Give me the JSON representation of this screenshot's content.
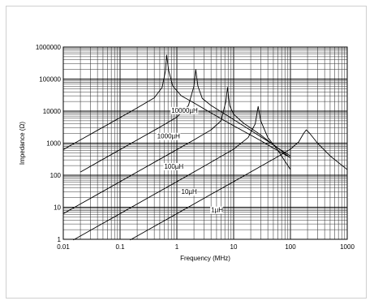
{
  "chart_data": {
    "type": "line",
    "xlabel": "Frequency (MHz)",
    "ylabel": "Impedance (Ω)",
    "xscale": "log",
    "yscale": "log",
    "xlim": [
      0.01,
      1000
    ],
    "ylim": [
      1,
      1000000
    ],
    "grid": true,
    "x_ticks": [
      "0.01",
      "0.1",
      "1",
      "10",
      "100",
      "1000"
    ],
    "y_ticks": [
      "1",
      "10",
      "100",
      "1000",
      "10000",
      "100000",
      "1000000"
    ],
    "series": [
      {
        "name": "10000µH",
        "x": [
          0.01,
          0.02,
          0.05,
          0.1,
          0.2,
          0.4,
          0.55,
          0.63,
          0.66,
          0.72,
          0.85,
          1.2,
          2,
          5,
          10,
          30,
          50,
          100
        ],
        "y": [
          630,
          1260,
          3150,
          6300,
          12600,
          26000,
          55000,
          180000,
          560000,
          180000,
          60000,
          30000,
          18000,
          7000,
          3500,
          1200,
          700,
          350
        ]
      },
      {
        "name": "1000µH",
        "x": [
          0.02,
          0.05,
          0.1,
          0.2,
          0.5,
          1,
          1.6,
          2.0,
          2.15,
          2.35,
          2.8,
          4,
          8,
          20,
          50,
          90
        ],
        "y": [
          125,
          315,
          630,
          1260,
          3150,
          6500,
          15000,
          60000,
          200000,
          60000,
          25000,
          15000,
          7000,
          2500,
          900,
          400
        ]
      },
      {
        "name": "100µH",
        "x": [
          0.01,
          0.02,
          0.05,
          0.1,
          0.2,
          0.5,
          1,
          2,
          4,
          6,
          7.3,
          7.8,
          8.5,
          10,
          15,
          30,
          60,
          100
        ],
        "y": [
          6.3,
          12.6,
          31.5,
          63,
          126,
          315,
          630,
          1260,
          2600,
          5000,
          20000,
          55000,
          15000,
          8000,
          4200,
          1800,
          700,
          400
        ]
      },
      {
        "name": "10µH",
        "x": [
          0.015,
          0.03,
          0.1,
          0.3,
          1,
          3,
          10,
          18,
          24,
          27,
          30,
          40,
          60,
          100
        ],
        "y": [
          0.95,
          1.9,
          6.3,
          19,
          63,
          190,
          650,
          1500,
          4000,
          14000,
          5000,
          1500,
          600,
          150
        ]
      },
      {
        "name": "1µH",
        "x": [
          0.15,
          0.3,
          1,
          3,
          10,
          30,
          60,
          100,
          140,
          170,
          190,
          220,
          300,
          500,
          1000
        ],
        "y": [
          0.95,
          1.9,
          6.3,
          19,
          63,
          190,
          380,
          650,
          1100,
          2000,
          2600,
          2000,
          1000,
          400,
          150
        ]
      }
    ],
    "labels": [
      {
        "text": "10000µH",
        "x": 0.8,
        "y": 9000
      },
      {
        "text": "1000µH",
        "x": 0.45,
        "y": 1400
      },
      {
        "text": "100µH",
        "x": 0.6,
        "y": 160
      },
      {
        "text": "10µH",
        "x": 1.2,
        "y": 26
      },
      {
        "text": "1µH",
        "x": 4.0,
        "y": 7
      }
    ]
  }
}
